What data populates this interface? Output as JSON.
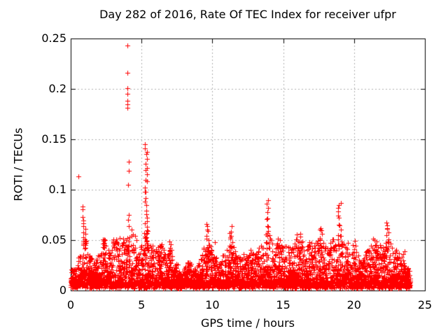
{
  "chart_data": {
    "type": "scatter",
    "title": "Day 282 of 2016, Rate Of TEC Index for receiver ufpr",
    "xlabel": "GPS time / hours",
    "ylabel": "ROTI / TECUs",
    "xlim": [
      0,
      25
    ],
    "ylim": [
      0,
      0.25
    ],
    "xticks": {
      "values": [
        0,
        5,
        10,
        15,
        20,
        25
      ],
      "labels": [
        "0",
        "5",
        "10",
        "15",
        "20",
        "25"
      ]
    },
    "yticks": {
      "values": [
        0,
        0.05,
        0.1,
        0.15,
        0.2,
        0.25
      ],
      "labels": [
        "0",
        "0.05",
        "0.1",
        "0.15",
        "0.2",
        "0.25"
      ]
    },
    "grid": {
      "shown": true,
      "style": "dashed"
    },
    "legend": "none",
    "marker": {
      "shape": "plus",
      "size": 7
    },
    "colors": {
      "marker": "#ff0000",
      "grid": "#b0b0b0",
      "axis": "#000000",
      "background": "#ffffff"
    },
    "series_name": "ROTI",
    "time_span_hours": [
      0,
      23.96
    ],
    "baseline_band": {
      "description": "dense band of 30s-rate ROTI samples hugging 0.003-0.03 TECU, upper envelope varies by hour",
      "floor": 0.002,
      "n_points": 4200,
      "envelope": [
        [
          0,
          0.018
        ],
        [
          0.3,
          0.024
        ],
        [
          0.55,
          0.03
        ],
        [
          0.85,
          0.042
        ],
        [
          1.1,
          0.036
        ],
        [
          1.5,
          0.028
        ],
        [
          2.0,
          0.034
        ],
        [
          2.4,
          0.05
        ],
        [
          2.8,
          0.036
        ],
        [
          3.1,
          0.05
        ],
        [
          3.5,
          0.056
        ],
        [
          3.8,
          0.046
        ],
        [
          4.1,
          0.052
        ],
        [
          4.4,
          0.065
        ],
        [
          4.7,
          0.042
        ],
        [
          5.0,
          0.046
        ],
        [
          5.3,
          0.06
        ],
        [
          5.6,
          0.05
        ],
        [
          5.9,
          0.036
        ],
        [
          6.3,
          0.048
        ],
        [
          6.7,
          0.032
        ],
        [
          7.0,
          0.047
        ],
        [
          7.3,
          0.026
        ],
        [
          7.7,
          0.018
        ],
        [
          8.0,
          0.016
        ],
        [
          8.3,
          0.026
        ],
        [
          8.7,
          0.018
        ],
        [
          9.0,
          0.024
        ],
        [
          9.3,
          0.036
        ],
        [
          9.6,
          0.05
        ],
        [
          9.9,
          0.046
        ],
        [
          10.2,
          0.032
        ],
        [
          10.5,
          0.026
        ],
        [
          10.9,
          0.036
        ],
        [
          11.3,
          0.05
        ],
        [
          11.6,
          0.036
        ],
        [
          12.0,
          0.03
        ],
        [
          12.4,
          0.038
        ],
        [
          12.8,
          0.036
        ],
        [
          13.2,
          0.042
        ],
        [
          13.6,
          0.05
        ],
        [
          13.95,
          0.06
        ],
        [
          14.3,
          0.046
        ],
        [
          14.7,
          0.048
        ],
        [
          15.0,
          0.042
        ],
        [
          15.4,
          0.042
        ],
        [
          15.8,
          0.05
        ],
        [
          16.1,
          0.055
        ],
        [
          16.5,
          0.046
        ],
        [
          16.9,
          0.046
        ],
        [
          17.3,
          0.05
        ],
        [
          17.7,
          0.055
        ],
        [
          18.0,
          0.046
        ],
        [
          18.4,
          0.05
        ],
        [
          18.7,
          0.055
        ],
        [
          19.0,
          0.06
        ],
        [
          19.3,
          0.05
        ],
        [
          19.6,
          0.036
        ],
        [
          20.0,
          0.046
        ],
        [
          20.4,
          0.026
        ],
        [
          20.8,
          0.036
        ],
        [
          21.2,
          0.046
        ],
        [
          21.6,
          0.05
        ],
        [
          22.0,
          0.046
        ],
        [
          22.35,
          0.055
        ],
        [
          22.7,
          0.04
        ],
        [
          23.0,
          0.036
        ],
        [
          23.3,
          0.03
        ],
        [
          23.6,
          0.026
        ],
        [
          23.95,
          0.016
        ]
      ]
    },
    "spike_clusters": [
      {
        "t": 0.54,
        "w": 0.04,
        "pts": [
          0.113
        ]
      },
      {
        "t": 0.88,
        "w": 0.06,
        "n": 10,
        "lo": 0.046,
        "hi": 0.083
      },
      {
        "t": 1.02,
        "w": 0.05,
        "n": 5,
        "lo": 0.04,
        "hi": 0.06
      },
      {
        "t": 1.04,
        "w": 0.06,
        "n": 6,
        "lo": 0.044,
        "hi": 0.05
      },
      {
        "t": 2.33,
        "w": 0.12,
        "n": 9,
        "lo": 0.043,
        "hi": 0.051
      },
      {
        "t": 3.05,
        "w": 0.1,
        "n": 8,
        "lo": 0.043,
        "hi": 0.05
      },
      {
        "t": 4.02,
        "w": 0.05,
        "pts": [
          0.243,
          0.216,
          0.201,
          0.195,
          0.188,
          0.185,
          0.181
        ]
      },
      {
        "t": 4.1,
        "w": 0.12,
        "pts": [
          0.128,
          0.119,
          0.105,
          0.075,
          0.07,
          0.064
        ]
      },
      {
        "t": 5.3,
        "w": 0.22,
        "n": 24,
        "lo": 0.058,
        "hi": 0.145
      },
      {
        "t": 5.35,
        "w": 0.3,
        "n": 14,
        "lo": 0.034,
        "hi": 0.058
      },
      {
        "t": 6.3,
        "w": 0.2,
        "n": 6,
        "lo": 0.03,
        "hi": 0.046
      },
      {
        "t": 7.0,
        "w": 0.25,
        "n": 8,
        "lo": 0.032,
        "hi": 0.047
      },
      {
        "t": 9.65,
        "w": 0.3,
        "n": 11,
        "lo": 0.038,
        "hi": 0.067
      },
      {
        "t": 10.15,
        "w": 0.05,
        "pts": [
          0.048
        ]
      },
      {
        "t": 11.3,
        "w": 0.25,
        "n": 11,
        "lo": 0.038,
        "hi": 0.062
      },
      {
        "t": 13.9,
        "w": 0.22,
        "n": 13,
        "lo": 0.042,
        "hi": 0.088
      },
      {
        "t": 14.8,
        "w": 0.25,
        "n": 7,
        "lo": 0.032,
        "hi": 0.048
      },
      {
        "t": 16.05,
        "w": 0.3,
        "n": 9,
        "lo": 0.036,
        "hi": 0.057
      },
      {
        "t": 17.7,
        "w": 0.28,
        "n": 9,
        "lo": 0.042,
        "hi": 0.063
      },
      {
        "t": 18.95,
        "w": 0.25,
        "n": 13,
        "lo": 0.045,
        "hi": 0.088
      },
      {
        "t": 19.6,
        "w": 0.1,
        "pts": [
          0.047
        ]
      },
      {
        "t": 20.05,
        "w": 0.25,
        "n": 6,
        "lo": 0.03,
        "hi": 0.048
      },
      {
        "t": 21.5,
        "w": 0.3,
        "n": 8,
        "lo": 0.032,
        "hi": 0.052
      },
      {
        "t": 22.35,
        "w": 0.22,
        "n": 11,
        "lo": 0.04,
        "hi": 0.068
      },
      {
        "t": 23.5,
        "w": 0.1,
        "pts": [
          0.039,
          0.036,
          0.03
        ]
      }
    ]
  }
}
